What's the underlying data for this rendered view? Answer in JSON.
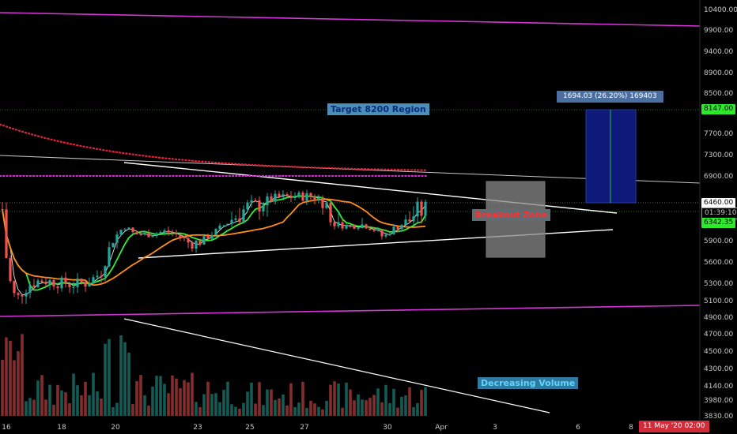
{
  "chart_data": {
    "type": "candlestick",
    "title": "",
    "y_axis": {
      "range": [
        3750,
        10500
      ],
      "ticks": [
        "10400.00",
        "9900.00",
        "9400.00",
        "8900.00",
        "8500.00",
        "8147.00",
        "7700.00",
        "7300.00",
        "6900.00",
        "6460.00",
        "6342.35",
        "5900.00",
        "5600.00",
        "5300.00",
        "5100.00",
        "4900.00",
        "4700.00",
        "4500.00",
        "4300.00",
        "4140.00",
        "3980.00",
        "3830.00"
      ]
    },
    "x_axis": {
      "ticks": [
        "16",
        "18",
        "20",
        "23",
        "25",
        "27",
        "30",
        "Apr",
        "3",
        "6",
        "8"
      ],
      "cursor_label": "11 May '20   02:00"
    },
    "annotations": {
      "target": "Target 8200 Region",
      "breakout": "Breakout Zone",
      "volume": "Decreasing Volume",
      "measure": "1694.03 (26.20%) 169403"
    },
    "price_tags": {
      "target": "8147.00",
      "current": "6460.00",
      "countdown": "01:39:10",
      "support": "6342.35"
    },
    "colors": {
      "up": "#26a69a",
      "down": "#ef5350",
      "magenta": "#d535d5",
      "ma_green": "#33ee33",
      "ma_orange": "#ff8c1a",
      "ma_red_dotted": "#e8213a",
      "ma_magenta_dotted": "#cc2fcc",
      "target_box": "#0d1a7a"
    },
    "trendlines_price": {
      "upper_triangle": [
        [
          0,
          7150
        ],
        [
          780,
          6180
        ]
      ],
      "upper_triangle_start": [
        [
          157,
          7150
        ],
        [
          540,
          6950
        ]
      ],
      "lower_triangle": [
        [
          175,
          5650
        ],
        [
          775,
          6040
        ]
      ],
      "long_resistance": [
        [
          0,
          7150
        ],
        [
          932,
          6810
        ]
      ],
      "magenta_top": [
        [
          0,
          10240
        ],
        [
          885,
          9950
        ]
      ],
      "magenta_bottom": [
        [
          0,
          4880
        ],
        [
          885,
          5050
        ]
      ]
    }
  }
}
